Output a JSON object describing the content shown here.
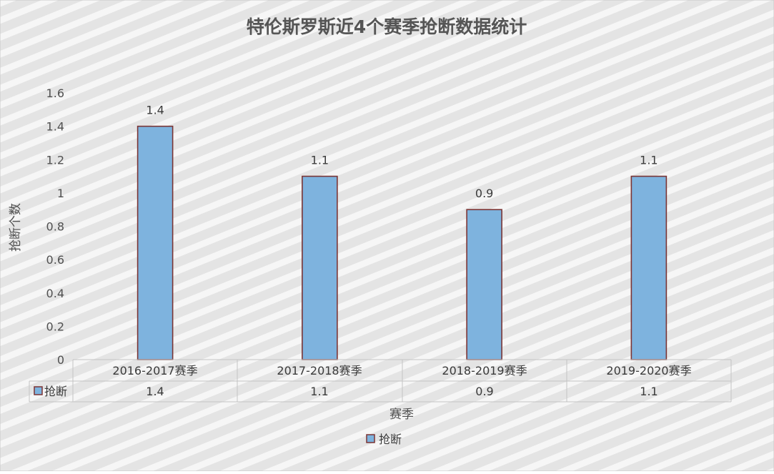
{
  "chart_data": {
    "type": "bar",
    "title": "特伦斯罗斯近4个赛季抢断数据统计",
    "xlabel": "赛季",
    "ylabel": "抢断个数",
    "categories": [
      "2016-2017赛季",
      "2017-2018赛季",
      "2018-2019赛季",
      "2019-2020赛季"
    ],
    "series": [
      {
        "name": "抢断",
        "values": [
          1.4,
          1.1,
          0.9,
          1.1
        ],
        "color": "#7EB3DE",
        "edge_color": "#7B3535"
      }
    ],
    "data_labels": [
      "1.4",
      "1.1",
      "0.9",
      "1.1"
    ],
    "yticks": [
      "0",
      "0.2",
      "0.4",
      "0.6",
      "0.8",
      "1",
      "1.2",
      "1.4",
      "1.6"
    ],
    "ylim": [
      0,
      1.6
    ],
    "grid": false,
    "legend": "bottom-center",
    "data_table": true,
    "background": "striped-gray"
  }
}
